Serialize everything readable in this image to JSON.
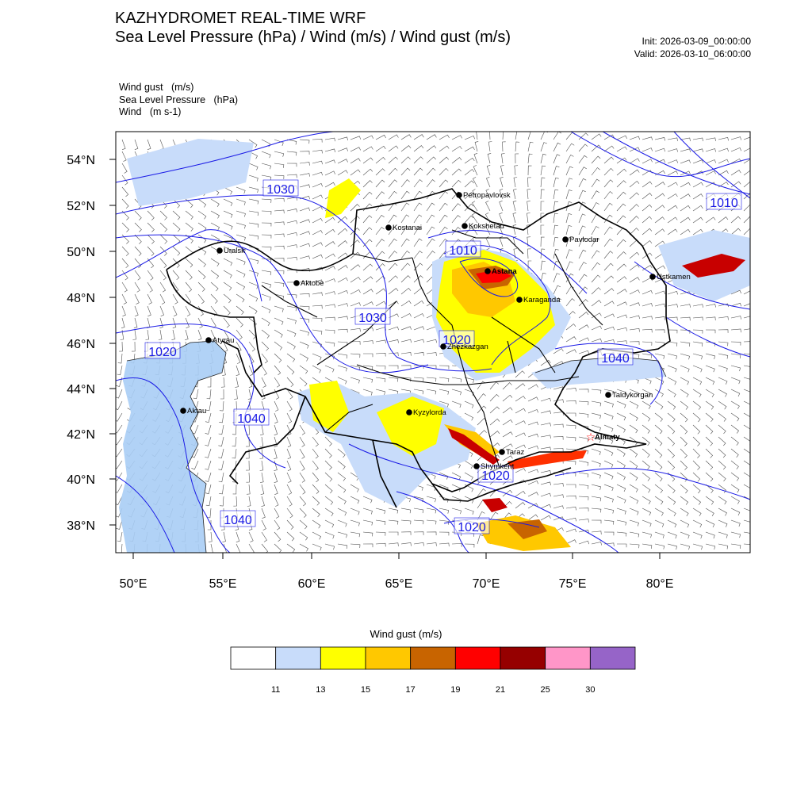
{
  "header": {
    "title": "KAZHYDROMET REAL-TIME WRF",
    "subtitle": "Sea Level Pressure  (hPa) / Wind  (m/s) / Wind gust  (m/s)",
    "init": "Init: 2026-03-09_00:00:00",
    "valid": "Valid: 2026-03-10_06:00:00"
  },
  "fields": [
    "Wind gust   (m/s)",
    "Sea Level Pressure   (hPa)",
    "Wind   (m s-1)"
  ],
  "axes": {
    "x_ticks": [
      "50°E",
      "55°E",
      "60°E",
      "65°E",
      "70°E",
      "75°E",
      "80°E"
    ],
    "y_ticks": [
      "54°N",
      "52°N",
      "50°N",
      "48°N",
      "46°N",
      "44°N",
      "42°N",
      "40°N",
      "38°N"
    ]
  },
  "cities": [
    {
      "name": "Petropavlovsk",
      "capital": false
    },
    {
      "name": "Kostanai",
      "capital": false
    },
    {
      "name": "Kokshetau",
      "capital": false
    },
    {
      "name": "Pavlodar",
      "capital": false
    },
    {
      "name": "Uralsk",
      "capital": false
    },
    {
      "name": "Astana",
      "capital": true
    },
    {
      "name": "Ustkamen",
      "capital": false
    },
    {
      "name": "Aktobe",
      "capital": false
    },
    {
      "name": "Karaganda",
      "capital": false
    },
    {
      "name": "Atyrau",
      "capital": false
    },
    {
      "name": "Zhezkazgan",
      "capital": false
    },
    {
      "name": "Taldykorgan",
      "capital": false
    },
    {
      "name": "Kyzylorda",
      "capital": false
    },
    {
      "name": "Aktau",
      "capital": false
    },
    {
      "name": "Almaty",
      "capital": true
    },
    {
      "name": "Taraz",
      "capital": false
    },
    {
      "name": "Shymkent",
      "capital": false
    }
  ],
  "isobar_labels": [
    "1030",
    "1010",
    "1010",
    "1030",
    "1020",
    "1020",
    "1040",
    "1040",
    "1020",
    "1040",
    "1020"
  ],
  "colorbar": {
    "title": "Wind gust (m/s)",
    "labels": [
      "11",
      "13",
      "15",
      "17",
      "19",
      "21",
      "25",
      "30"
    ],
    "colors": [
      "#ffffff",
      "#c8dcfa",
      "#ffff00",
      "#ffc800",
      "#c86400",
      "#ff0000",
      "#960000",
      "#ff96c8",
      "#9664c8"
    ]
  },
  "colors": {
    "isobar": "#1a1ae6",
    "border": "#000000",
    "barb": "#505050"
  }
}
